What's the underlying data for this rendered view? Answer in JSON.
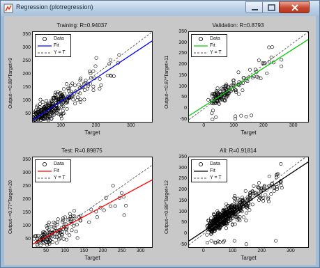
{
  "window": {
    "title": "Regression (plotregression)",
    "icon": "matlab-figure-icon",
    "controls": {
      "minimize_icon": "minimize-icon",
      "maximize_icon": "maximize-icon",
      "close_icon": "close-icon"
    }
  },
  "legend_labels": {
    "data": "Data",
    "fit": "Fit",
    "yt": "Y = T"
  },
  "colors": {
    "training": "#0000ff",
    "validation": "#00cc00",
    "test": "#ff0000",
    "all": "#000000",
    "ideal": "#555555"
  },
  "panels": [
    {
      "key": "training",
      "title": "Training: R=0.94037",
      "xlabel": "Target",
      "ylabel": "Output~=0.88*Target+9",
      "xticks": [
        "100",
        "200",
        "300"
      ],
      "yticks": [
        "350",
        "300",
        "250",
        "200",
        "150",
        "100",
        "50"
      ]
    },
    {
      "key": "validation",
      "title": "Validation: R=0.8793",
      "xlabel": "Target",
      "ylabel": "Output~=0.87*Target+11",
      "xticks": [
        "0",
        "100",
        "200",
        "300"
      ],
      "yticks": [
        "350",
        "300",
        "250",
        "200",
        "150",
        "100",
        "50",
        "0",
        "-50"
      ]
    },
    {
      "key": "test",
      "title": "Test: R=0.89875",
      "xlabel": "Target",
      "ylabel": "Output~=0.77*Target+20",
      "xticks": [
        "50",
        "100",
        "150",
        "200",
        "250",
        "300"
      ],
      "yticks": [
        "350",
        "300",
        "250",
        "200",
        "150",
        "100",
        "50"
      ]
    },
    {
      "key": "all",
      "title": "All: R=0.91814",
      "xlabel": "Target",
      "ylabel": "Output~=0.88*Target+12",
      "xticks": [
        "0",
        "100",
        "200",
        "300"
      ],
      "yticks": [
        "350",
        "300",
        "250",
        "200",
        "150",
        "100",
        "50",
        "0",
        "-50"
      ]
    }
  ],
  "chart_data": [
    {
      "type": "scatter",
      "title": "Training: R=0.94037",
      "xlabel": "Target",
      "ylabel": "Output~=0.88*Target+9",
      "xlim": [
        20,
        360
      ],
      "ylim": [
        20,
        360
      ],
      "fit": {
        "slope": 0.88,
        "intercept": 9
      },
      "series": [
        {
          "name": "Data",
          "marker": "circle"
        },
        {
          "name": "Fit",
          "line": "solid",
          "color": "#0000ff"
        },
        {
          "name": "Y = T",
          "line": "dashed"
        }
      ],
      "legend": "top-left",
      "grid": false
    },
    {
      "type": "scatter",
      "title": "Validation: R=0.8793",
      "xlabel": "Target",
      "ylabel": "Output~=0.87*Target+11",
      "xlim": [
        -50,
        350
      ],
      "ylim": [
        -60,
        350
      ],
      "fit": {
        "slope": 0.87,
        "intercept": 11
      },
      "series": [
        {
          "name": "Data",
          "marker": "circle"
        },
        {
          "name": "Fit",
          "line": "solid",
          "color": "#00cc00"
        },
        {
          "name": "Y = T",
          "line": "dashed"
        }
      ],
      "legend": "top-left",
      "grid": false
    },
    {
      "type": "scatter",
      "title": "Test: R=0.89875",
      "xlabel": "Target",
      "ylabel": "Output~=0.77*Target+20",
      "xlim": [
        15,
        330
      ],
      "ylim": [
        20,
        360
      ],
      "fit": {
        "slope": 0.77,
        "intercept": 20
      },
      "series": [
        {
          "name": "Data",
          "marker": "circle"
        },
        {
          "name": "Fit",
          "line": "solid",
          "color": "#ff0000"
        },
        {
          "name": "Y = T",
          "line": "dashed"
        }
      ],
      "legend": "top-left",
      "grid": false
    },
    {
      "type": "scatter",
      "title": "All: R=0.91814",
      "xlabel": "Target",
      "ylabel": "Output~=0.88*Target+12",
      "xlim": [
        -50,
        360
      ],
      "ylim": [
        -60,
        350
      ],
      "fit": {
        "slope": 0.88,
        "intercept": 12
      },
      "series": [
        {
          "name": "Data",
          "marker": "circle"
        },
        {
          "name": "Fit",
          "line": "solid",
          "color": "#000000"
        },
        {
          "name": "Y = T",
          "line": "dashed"
        }
      ],
      "legend": "top-left",
      "grid": false
    }
  ]
}
